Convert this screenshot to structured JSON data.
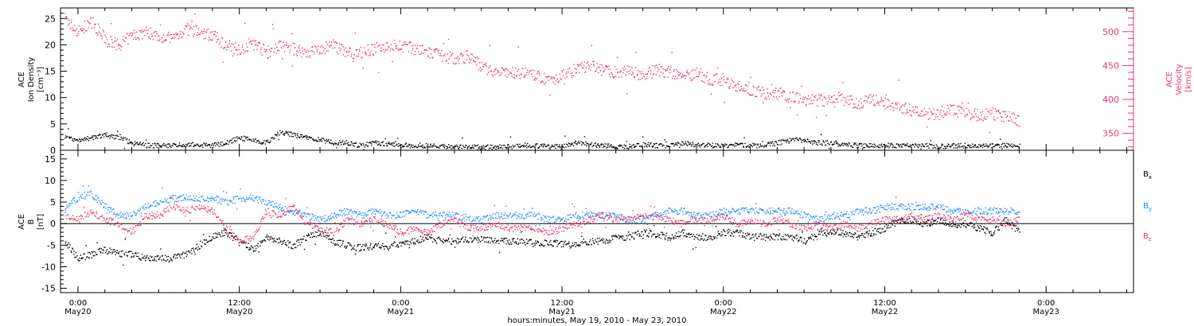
{
  "figure": {
    "xlabel": "hours:minutes, May 19, 2010 - May 23, 2010",
    "x_ticks": [
      {
        "hm": "0:00",
        "day": "May20",
        "x": 0
      },
      {
        "hm": "12:00",
        "day": "May20",
        "x": 12
      },
      {
        "hm": "0:00",
        "day": "May21",
        "x": 24
      },
      {
        "hm": "12:00",
        "day": "May21",
        "x": 36
      },
      {
        "hm": "0:00",
        "day": "May22",
        "x": 48
      },
      {
        "hm": "12:00",
        "day": "May22",
        "x": 60
      },
      {
        "hm": "0:00",
        "day": "May23",
        "x": 72
      }
    ]
  },
  "colors": {
    "black": "#000000",
    "pink": "#e8356a",
    "blue": "#1a8cff"
  },
  "chart_data": [
    {
      "type": "scatter",
      "panel": "top",
      "x_units": "hours after May 20, 2010 0:00",
      "xlim": [
        -1.3,
        78.5
      ],
      "left_axis": {
        "label_lines": [
          "ACE",
          "Ion Density",
          "[cm⁻³]"
        ],
        "ylim": [
          0,
          27
        ],
        "ticks": [
          0,
          5,
          10,
          15,
          20,
          25
        ]
      },
      "right_axis": {
        "label_lines": [
          "ACE",
          "Velocity",
          "[km/s]"
        ],
        "ylim": [
          325,
          535
        ],
        "ticks": [
          350,
          400,
          450,
          500
        ],
        "color": "#e8356a"
      },
      "series": [
        {
          "axis": "right",
          "color": "#e8356a",
          "x": [
            -1,
            0,
            1,
            2,
            3,
            4,
            5,
            6,
            7,
            8,
            9,
            10,
            11,
            12,
            13,
            14,
            15,
            16,
            17,
            18,
            19,
            20,
            21,
            22,
            23,
            24,
            25,
            26,
            27,
            28,
            29,
            30,
            31,
            32,
            33,
            34,
            35,
            36,
            37,
            38,
            39,
            40,
            41,
            42,
            43,
            44,
            45,
            46,
            47,
            48,
            49,
            50,
            51,
            52,
            53,
            54,
            55,
            56,
            57,
            58,
            59,
            60,
            61,
            62,
            63,
            64,
            65,
            66,
            67,
            68,
            69,
            70
          ],
          "y": [
            520,
            500,
            515,
            490,
            480,
            495,
            500,
            495,
            490,
            505,
            500,
            495,
            480,
            475,
            485,
            470,
            480,
            475,
            470,
            475,
            480,
            470,
            470,
            475,
            480,
            480,
            475,
            470,
            465,
            460,
            465,
            450,
            440,
            440,
            440,
            435,
            430,
            435,
            445,
            450,
            445,
            440,
            445,
            435,
            445,
            440,
            435,
            440,
            430,
            430,
            420,
            415,
            410,
            410,
            405,
            400,
            400,
            398,
            400,
            395,
            400,
            395,
            390,
            385,
            380,
            380,
            385,
            380,
            378,
            380,
            375,
            370
          ]
        },
        {
          "axis": "left",
          "color": "#000000",
          "x": [
            -1,
            0,
            1,
            2,
            3,
            4,
            5,
            6,
            7,
            8,
            9,
            10,
            11,
            12,
            13,
            14,
            15,
            16,
            17,
            18,
            19,
            20,
            21,
            22,
            23,
            24,
            25,
            26,
            27,
            28,
            29,
            30,
            31,
            32,
            33,
            34,
            35,
            36,
            37,
            38,
            39,
            40,
            41,
            42,
            43,
            44,
            45,
            46,
            47,
            48,
            49,
            50,
            51,
            52,
            53,
            54,
            55,
            56,
            57,
            58,
            59,
            60,
            61,
            62,
            63,
            64,
            65,
            66,
            67,
            68,
            69,
            70
          ],
          "y": [
            2.5,
            2.0,
            2.5,
            3.0,
            2.5,
            1.5,
            1.0,
            1.0,
            1.0,
            1.2,
            1.0,
            1.0,
            1.5,
            2.5,
            2.0,
            1.5,
            3.5,
            3.0,
            2.5,
            2.0,
            1.5,
            1.5,
            1.0,
            1.5,
            1.2,
            1.0,
            1.0,
            1.0,
            0.8,
            0.8,
            0.8,
            0.6,
            0.7,
            0.8,
            1.0,
            1.0,
            0.8,
            0.8,
            1.5,
            1.2,
            1.0,
            0.8,
            0.8,
            1.2,
            1.0,
            1.0,
            1.5,
            1.2,
            1.0,
            1.0,
            1.2,
            1.0,
            1.0,
            1.5,
            2.0,
            2.0,
            1.5,
            1.5,
            1.2,
            1.0,
            1.0,
            1.0,
            1.0,
            1.0,
            1.0,
            0.8,
            1.0,
            1.0,
            0.8,
            1.0,
            1.0,
            1.0
          ]
        }
      ]
    },
    {
      "type": "scatter",
      "panel": "bottom",
      "x_units": "hours after May 20, 2010 0:00",
      "xlim": [
        -1.3,
        78.5
      ],
      "left_axis": {
        "label_lines": [
          "ACE",
          "B",
          "[nT]"
        ],
        "ylim": [
          -16,
          17
        ],
        "ticks": [
          -15,
          -10,
          -5,
          0,
          5,
          10,
          15
        ]
      },
      "zero_line": 0,
      "legend": [
        {
          "base": "B",
          "sub": "x",
          "color": "#000000"
        },
        {
          "base": "B",
          "sub": "y",
          "color": "#1a8cff"
        },
        {
          "base": "B",
          "sub": "z",
          "color": "#e8356a"
        }
      ],
      "series": [
        {
          "name": "Bx",
          "color": "#000000",
          "x": [
            -1,
            0,
            1,
            2,
            3,
            4,
            5,
            6,
            7,
            8,
            9,
            10,
            11,
            12,
            13,
            14,
            15,
            16,
            17,
            18,
            19,
            20,
            21,
            22,
            23,
            24,
            25,
            26,
            27,
            28,
            29,
            30,
            31,
            32,
            33,
            34,
            35,
            36,
            37,
            38,
            39,
            40,
            41,
            42,
            43,
            44,
            45,
            46,
            47,
            48,
            49,
            50,
            51,
            52,
            53,
            54,
            55,
            56,
            57,
            58,
            59,
            60,
            61,
            62,
            63,
            64,
            65,
            66,
            67,
            68,
            69,
            70
          ],
          "y": [
            -4,
            -8,
            -7,
            -6,
            -7,
            -7,
            -8,
            -8,
            -8,
            -7,
            -5,
            -3,
            -2,
            -4,
            -6,
            -3,
            -4,
            -5,
            -3,
            -2,
            -4,
            -5,
            -5.5,
            -5,
            -5,
            -4.5,
            -4,
            -3,
            -4,
            -4,
            -3.5,
            -3.5,
            -4,
            -4,
            -4,
            -4.5,
            -4.5,
            -4.5,
            -4.5,
            -4,
            -4,
            -3,
            -3,
            -2,
            -2.5,
            -3,
            -2,
            -3,
            -3,
            -2,
            -2,
            -3,
            -3,
            -3,
            -3,
            -4,
            -2,
            -2,
            -2,
            -3,
            -2,
            -1,
            1,
            1,
            0,
            1,
            0,
            0,
            -1,
            -2,
            1,
            -2
          ]
        },
        {
          "name": "By",
          "color": "#1a8cff",
          "x": [
            -1,
            0,
            1,
            2,
            3,
            4,
            5,
            6,
            7,
            8,
            9,
            10,
            11,
            12,
            13,
            14,
            15,
            16,
            17,
            18,
            19,
            20,
            21,
            22,
            23,
            24,
            25,
            26,
            27,
            28,
            29,
            30,
            31,
            32,
            33,
            34,
            35,
            36,
            37,
            38,
            39,
            40,
            41,
            42,
            43,
            44,
            45,
            46,
            47,
            48,
            49,
            50,
            51,
            52,
            53,
            54,
            55,
            56,
            57,
            58,
            59,
            60,
            61,
            62,
            63,
            64,
            65,
            66,
            67,
            68,
            69,
            70
          ],
          "y": [
            4,
            6,
            7,
            4,
            2,
            2,
            4,
            5,
            6,
            6,
            6,
            6,
            5,
            6,
            6,
            5,
            4,
            3,
            2,
            1,
            2,
            3,
            2,
            3,
            2,
            2,
            3,
            2,
            2,
            2,
            1,
            1,
            2,
            2,
            2,
            2,
            1,
            1,
            2,
            2,
            2,
            2,
            1,
            1,
            2,
            3,
            3,
            2,
            2,
            3,
            3,
            3,
            3,
            3,
            3,
            2,
            1,
            2,
            2,
            3,
            3,
            4,
            4,
            4,
            4,
            4,
            3,
            3,
            3,
            3,
            3,
            3
          ]
        },
        {
          "name": "Bz",
          "color": "#e8356a",
          "x": [
            -1,
            0,
            1,
            2,
            3,
            4,
            5,
            6,
            7,
            8,
            9,
            10,
            11,
            12,
            13,
            14,
            15,
            16,
            17,
            18,
            19,
            20,
            21,
            22,
            23,
            24,
            25,
            26,
            27,
            28,
            29,
            30,
            31,
            32,
            33,
            34,
            35,
            36,
            37,
            38,
            39,
            40,
            41,
            42,
            43,
            44,
            45,
            46,
            47,
            48,
            49,
            50,
            51,
            52,
            53,
            54,
            55,
            56,
            57,
            58,
            59,
            60,
            61,
            62,
            63,
            64,
            65,
            66,
            67,
            68,
            69,
            70
          ],
          "y": [
            2,
            1,
            3,
            1,
            0,
            -2,
            2,
            2,
            4,
            3,
            4,
            3,
            -1,
            -4,
            -3,
            3,
            2,
            4,
            0,
            -1,
            -2,
            1,
            0,
            1,
            0,
            -2,
            -1,
            -2,
            0,
            1,
            -1,
            -1,
            0,
            -1,
            -1,
            -1,
            -2,
            -1,
            0,
            1,
            2,
            1,
            1,
            2,
            2,
            1,
            0,
            1,
            1,
            2,
            0,
            1,
            0,
            1,
            0,
            -1,
            0,
            -1,
            0,
            -1,
            0,
            1,
            1,
            2,
            1,
            2,
            1,
            2,
            1,
            1,
            0,
            1
          ]
        }
      ]
    }
  ]
}
